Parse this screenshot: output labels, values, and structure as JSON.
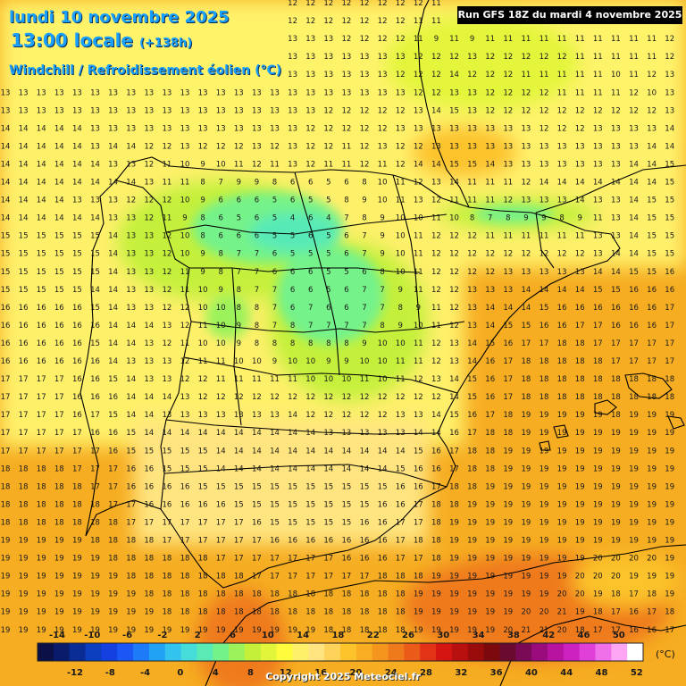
{
  "title": {
    "date": "lundi 10 novembre 2025",
    "time": "13:00 locale",
    "offset": "(+138h)",
    "parameter": "Windchill / Refroidissement éolien (°C)"
  },
  "run_banner": "Run GFS 18Z du mardi 4 novembre 2025",
  "copyright": "Copyright 2025 Meteociel.fr",
  "legend": {
    "unit": "(°C)",
    "upper_labels": [
      "-14",
      "-10",
      "-6",
      "-2",
      "2",
      "6",
      "10",
      "14",
      "18",
      "22",
      "26",
      "30",
      "34",
      "38",
      "42",
      "46",
      "50"
    ],
    "lower_labels": [
      "-12",
      "-8",
      "-4",
      "0",
      "4",
      "8",
      "12",
      "16",
      "20",
      "24",
      "28",
      "32",
      "36",
      "40",
      "44",
      "48",
      "52"
    ],
    "colors": [
      "#0b1046",
      "#0a1b6b",
      "#0a2c95",
      "#0c3ec0",
      "#1440e0",
      "#1b57f5",
      "#1e7bf8",
      "#22a2f4",
      "#32c4ee",
      "#45dcda",
      "#59eab6",
      "#74f28a",
      "#9cf25a",
      "#c4f03a",
      "#e2f53a",
      "#fffb3d",
      "#fff06a",
      "#ffe47f",
      "#ffd35a",
      "#fcc32a",
      "#f8ad22",
      "#f4951e",
      "#ef7a1c",
      "#ea5a18",
      "#e23316",
      "#d41512",
      "#b8100e",
      "#9a0c0c",
      "#7c0a0c",
      "#6a0a2e",
      "#7a0a55",
      "#9a0c7c",
      "#b812a0",
      "#cc22c0",
      "#e040d8",
      "#f070ea",
      "#fca6f4",
      "#ffffff"
    ]
  },
  "map_values": {
    "rows": [
      "12 12 12 12 12 12 12 12 12 12 12 12 12 12 12 12 12 12 12 12 12 12 12 12 11 11 11 11 11 11 11 11 11 11 11 11 11 11",
      "12 12 12 12 12 12 12 12 12 12 12 12 12 12 12 12 12 12 12 12 12 12 12 11 11 9 9 11 11 11 11 11 11 11 10 11 12 12",
      "12 12 12 12 13 13 13 13 13 13 13 13 13 13 13 13 13 13 13 12 12 12 12 11 9 11 9 11 11 11 11 11 11 11 11 11 11 12",
      "13 13 13 13 13 13 13 13 13 13 13 13 13 13 13 13 13 13 13 13 13 13 13 12 12 12 13 12 12 12 12 12 11 11 11 11 11 12",
      "13 13 13 13 13 13 13 13 13 13 13 13 13 13 13 13 13 13 13 13 13 13 12 12 12 14 12 12 12 11 11 11 11 11 10 11 12 13",
      "13 13 13 13 13 13 13 13 13 13 13 13 13 13 13 13 13 13 13 13 13 13 13 12 12 13 13 12 12 12 12 11 11 11 11 12 10 13",
      "13 13 13 13 13 13 13 13 13 13 13 13 13 13 13 13 13 13 12 12 12 12 12 13 14 15 13 12 12 12 12 12 12 12 12 12 12 13",
      "14 14 14 14 14 13 13 13 13 13 13 13 13 13 13 13 13 12 12 12 12 12 13 13 13 13 13 13 13 13 12 12 12 13 13 13 13 14",
      "14 14 14 14 14 13 14 14 12 12 13 12 12 12 13 12 13 12 12 11 12 13 12 12 13 13 13 13 13 13 13 13 13 13 13 13 14 14",
      "14 14 14 14 14 14 13 13 12 11 10 9 10 11 12 11 13 12 11 11 12 11 12 14 14 15 15 14 13 13 13 13 13 13 13 14 14 15",
      "14 14 14 14 14 14 14 14 13 11 11 8 7 9 9 8 6 6 5 6 8 10 11 12 13 14 11 11 11 12 14 14 14 14 14 14 14 15",
      "14 14 14 14 13 13 13 12 12 12 10 9 6 6 6 5 6 5 5 8 9 10 11 13 12 11 11 11 12 13 13 13 14 13 13 14 15 15",
      "14 14 14 14 14 14 13 13 12 11 9 8 6 5 6 5 4 6 4 7 8 9 10 10 11 10 8 7 8 9 9 8 9 11 13 14 15 15",
      "15 15 15 15 15 15 14 13 13 12 10 8 6 6 6 5 5 6 5 6 7 9 10 11 12 12 12 11 11 11 11 11 11 13 13 14 15 15",
      "15 15 15 15 15 15 14 13 13 12 10 9 8 7 7 6 5 5 5 6 7 9 10 11 12 12 12 12 12 12 12 12 12 13 14 14 15 15",
      "15 15 15 15 15 15 14 13 13 12 11 9 8 7 7 6 6 6 5 5 6 8 10 11 12 12 12 12 13 13 13 13 13 14 14 15 15 16",
      "15 15 15 15 15 14 14 13 13 12 11 10 9 8 7 7 6 6 5 6 7 7 9 11 12 12 13 13 13 14 14 14 14 15 15 16 16 16",
      "16 16 16 16 16 15 14 13 13 12 12 10 10 8 8 7 6 7 6 6 7 7 8 9 11 12 13 14 14 14 15 16 16 16 16 16 16 17",
      "16 16 16 16 16 16 14 14 14 13 12 11 10 9 8 7 8 7 7 7 7 8 9 10 11 12 13 14 15 15 16 16 17 17 16 16 16 17",
      "16 16 16 16 16 15 14 14 13 12 11 10 10 9 8 8 8 8 8 8 9 10 10 11 12 13 14 15 16 17 17 18 18 17 17 17 17 17",
      "16 16 16 16 16 16 14 13 13 13 12 11 11 10 10 9 10 10 9 9 10 10 11 11 12 13 14 16 17 18 18 18 18 18 17 17 17 17",
      "17 17 17 17 16 16 15 14 13 13 12 12 11 11 11 11 11 10 10 10 11 10 11 12 13 14 15 16 17 18 18 18 18 18 18 18 18 18",
      "17 17 17 17 16 16 16 14 14 14 13 12 12 12 12 12 12 12 12 12 12 12 12 12 12 14 15 16 17 18 18 18 18 18 18 18 18 18",
      "17 17 17 17 16 17 15 14 14 13 13 13 13 13 13 13 14 12 12 12 12 12 13 13 14 15 16 17 18 19 19 19 19 19 18 19 19 19",
      "17 17 17 17 17 16 16 15 14 14 14 14 14 14 14 14 14 14 13 13 13 13 13 14 14 16 17 18 18 19 19 19 19 19 19 19 19 19",
      "17 17 17 17 17 17 16 15 15 15 15 15 14 14 14 14 14 14 14 14 14 14 14 15 16 17 18 18 19 19 19 19 19 19 19 19 19 19",
      "18 18 18 18 17 17 17 16 16 15 15 15 14 14 14 14 14 14 14 14 14 14 15 16 16 17 18 18 19 19 19 19 19 19 19 19 19 19",
      "18 18 18 18 18 17 17 16 16 16 16 15 15 15 15 15 15 15 15 15 15 15 16 16 17 18 18 19 19 19 19 19 19 19 19 19 19 19",
      "18 18 18 18 18 18 17 17 16 16 16 16 16 15 15 15 15 15 15 15 15 16 16 17 18 18 19 19 19 19 19 19 19 19 19 19 19 19",
      "18 18 18 18 18 18 18 17 17 17 17 17 17 17 16 15 15 15 15 15 16 16 17 17 18 19 19 19 19 19 19 19 19 19 19 19 19 19",
      "19 19 19 19 19 18 18 18 18 17 17 17 17 17 17 16 16 16 16 16 16 16 17 18 18 19 19 19 19 19 19 19 19 19 19 19 19 19",
      "19 19 19 19 19 19 18 18 18 18 18 18 17 17 17 17 17 17 17 16 16 16 17 17 18 19 19 19 19 19 19 19 19 20 20 20 20 19",
      "19 19 19 19 19 19 19 18 18 18 18 18 18 18 17 17 17 17 17 17 17 18 18 18 19 19 19 19 19 19 19 19 20 20 20 19 19 19",
      "19 19 19 19 19 19 19 19 18 18 18 18 18 18 18 18 18 18 18 18 18 18 18 19 19 19 19 19 19 19 19 20 20 19 18 17 18 19",
      "19 19 19 19 19 19 19 19 19 18 18 18 18 18 18 18 18 18 18 18 18 18 18 19 19 19 19 19 19 20 20 21 19 18 17 16 17 18",
      "19 19 19 19 19 19 19 19 19 19 19 19 19 19 19 19 19 19 18 18 18 18 18 19 19 19 19 19 20 21 21 20 18 17 17 16 16 17",
      "18 18 18 19 19 19 19 19 19 19 19 19 19 19 20 20 21 20 19 19 19 19 19 19 20 20 21 21 21 20 20 19 18 17 17 16 17 17",
      "18 18 18 19 19 19 19 19 19 19 19 19 19 19 20 20 21 20 19 19 19 19 19 19 20 20 21 21 21 20 20 19 18 17 17 16 17 17"
    ]
  }
}
